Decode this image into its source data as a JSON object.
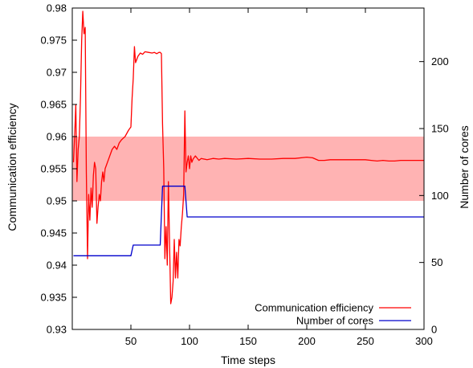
{
  "chart_data": {
    "type": "line",
    "xlabel": "Time steps",
    "ylabel_left": "Communication efficiency",
    "ylabel_right": "Number of cores",
    "xlim": [
      0,
      300
    ],
    "ylim_left": [
      0.93,
      0.98
    ],
    "ylim_right": [
      0,
      240
    ],
    "x_ticks": [
      50,
      100,
      150,
      200,
      250,
      300
    ],
    "y_left_ticks": [
      0.93,
      0.935,
      0.94,
      0.945,
      0.95,
      0.955,
      0.96,
      0.965,
      0.97,
      0.975,
      0.98
    ],
    "y_left_tick_labels": [
      "0.93",
      "0.935",
      "0.94",
      "0.945",
      "0.95",
      "0.955",
      "0.96",
      "0.965",
      "0.97",
      "0.975",
      "0.98"
    ],
    "y_right_ticks": [
      0,
      50,
      100,
      150,
      200
    ],
    "target_band": {
      "ymin": 0.95,
      "ymax": 0.96,
      "color": "#ffb3b3"
    },
    "legend_position": "bottom-right",
    "grid": false,
    "series": [
      {
        "name": "Communication efficiency",
        "axis": "left",
        "color": "#ff0000",
        "x": [
          1,
          2,
          3,
          4,
          5,
          6,
          7,
          8,
          9,
          10,
          11,
          12,
          13,
          14,
          15,
          16,
          17,
          18,
          19,
          20,
          21,
          22,
          23,
          24,
          25,
          26,
          27,
          28,
          30,
          32,
          34,
          36,
          38,
          40,
          42,
          45,
          48,
          50,
          51,
          52,
          53,
          54,
          55,
          56,
          58,
          60,
          62,
          65,
          68,
          70,
          72,
          74,
          75,
          76,
          77,
          78,
          79,
          80,
          81,
          82,
          83,
          84,
          85,
          86,
          87,
          88,
          89,
          90,
          91,
          92,
          93,
          94,
          95,
          96,
          97,
          98,
          99,
          100,
          101,
          102,
          103,
          105,
          108,
          110,
          115,
          120,
          125,
          130,
          140,
          150,
          160,
          170,
          180,
          190,
          200,
          205,
          210,
          215,
          220,
          230,
          240,
          250,
          255,
          260,
          265,
          270,
          275,
          280,
          290,
          300
        ],
        "y": [
          0.956,
          0.96,
          0.965,
          0.953,
          0.958,
          0.96,
          0.966,
          0.975,
          0.9795,
          0.976,
          0.977,
          0.9545,
          0.941,
          0.951,
          0.947,
          0.952,
          0.949,
          0.954,
          0.956,
          0.955,
          0.9465,
          0.949,
          0.951,
          0.95,
          0.953,
          0.9545,
          0.953,
          0.955,
          0.956,
          0.957,
          0.958,
          0.9585,
          0.958,
          0.959,
          0.9595,
          0.96,
          0.961,
          0.9615,
          0.966,
          0.969,
          0.974,
          0.9715,
          0.972,
          0.9725,
          0.973,
          0.9728,
          0.9732,
          0.9731,
          0.973,
          0.9731,
          0.9729,
          0.9731,
          0.9731,
          0.9729,
          0.962,
          0.955,
          0.941,
          0.946,
          0.94,
          0.953,
          0.943,
          0.934,
          0.935,
          0.9375,
          0.944,
          0.938,
          0.942,
          0.938,
          0.944,
          0.943,
          0.946,
          0.948,
          0.951,
          0.964,
          0.9545,
          0.956,
          0.957,
          0.955,
          0.957,
          0.956,
          0.9565,
          0.957,
          0.9563,
          0.9566,
          0.9564,
          0.9566,
          0.9565,
          0.9566,
          0.9565,
          0.9566,
          0.9565,
          0.9565,
          0.9566,
          0.9566,
          0.9568,
          0.9567,
          0.9563,
          0.9563,
          0.9564,
          0.9564,
          0.9564,
          0.9564,
          0.9563,
          0.9562,
          0.9563,
          0.9562,
          0.9562,
          0.9563,
          0.9563,
          0.9563
        ]
      },
      {
        "name": "Number of cores",
        "axis": "right",
        "color": "#0000cc",
        "x": [
          1,
          50,
          52,
          75,
          77,
          96,
          98,
          300
        ],
        "y": [
          55,
          55,
          63,
          63,
          107,
          107,
          84,
          84
        ]
      }
    ]
  }
}
